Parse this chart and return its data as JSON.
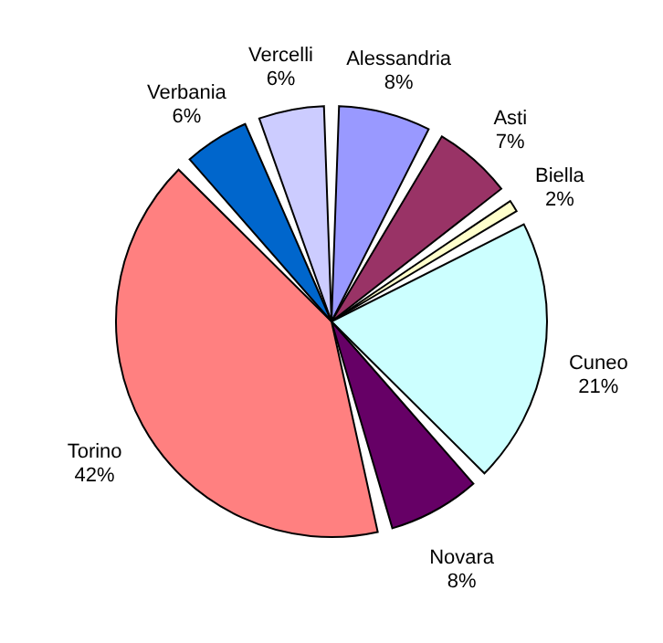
{
  "chart_data": {
    "type": "pie",
    "categories": [
      "Alessandria",
      "Asti",
      "Biella",
      "Cuneo",
      "Novara",
      "Torino",
      "Verbania",
      "Vercelli"
    ],
    "values": [
      8,
      7,
      2,
      21,
      8,
      42,
      6,
      6
    ],
    "value_labels": [
      "8%",
      "7%",
      "2%",
      "21%",
      "8%",
      "42%",
      "6%",
      "6%"
    ],
    "colors": [
      "#9999ff",
      "#993366",
      "#ffffcc",
      "#ccffff",
      "#660066",
      "#ff8080",
      "#0066cc",
      "#ccccff"
    ],
    "legend": false
  }
}
